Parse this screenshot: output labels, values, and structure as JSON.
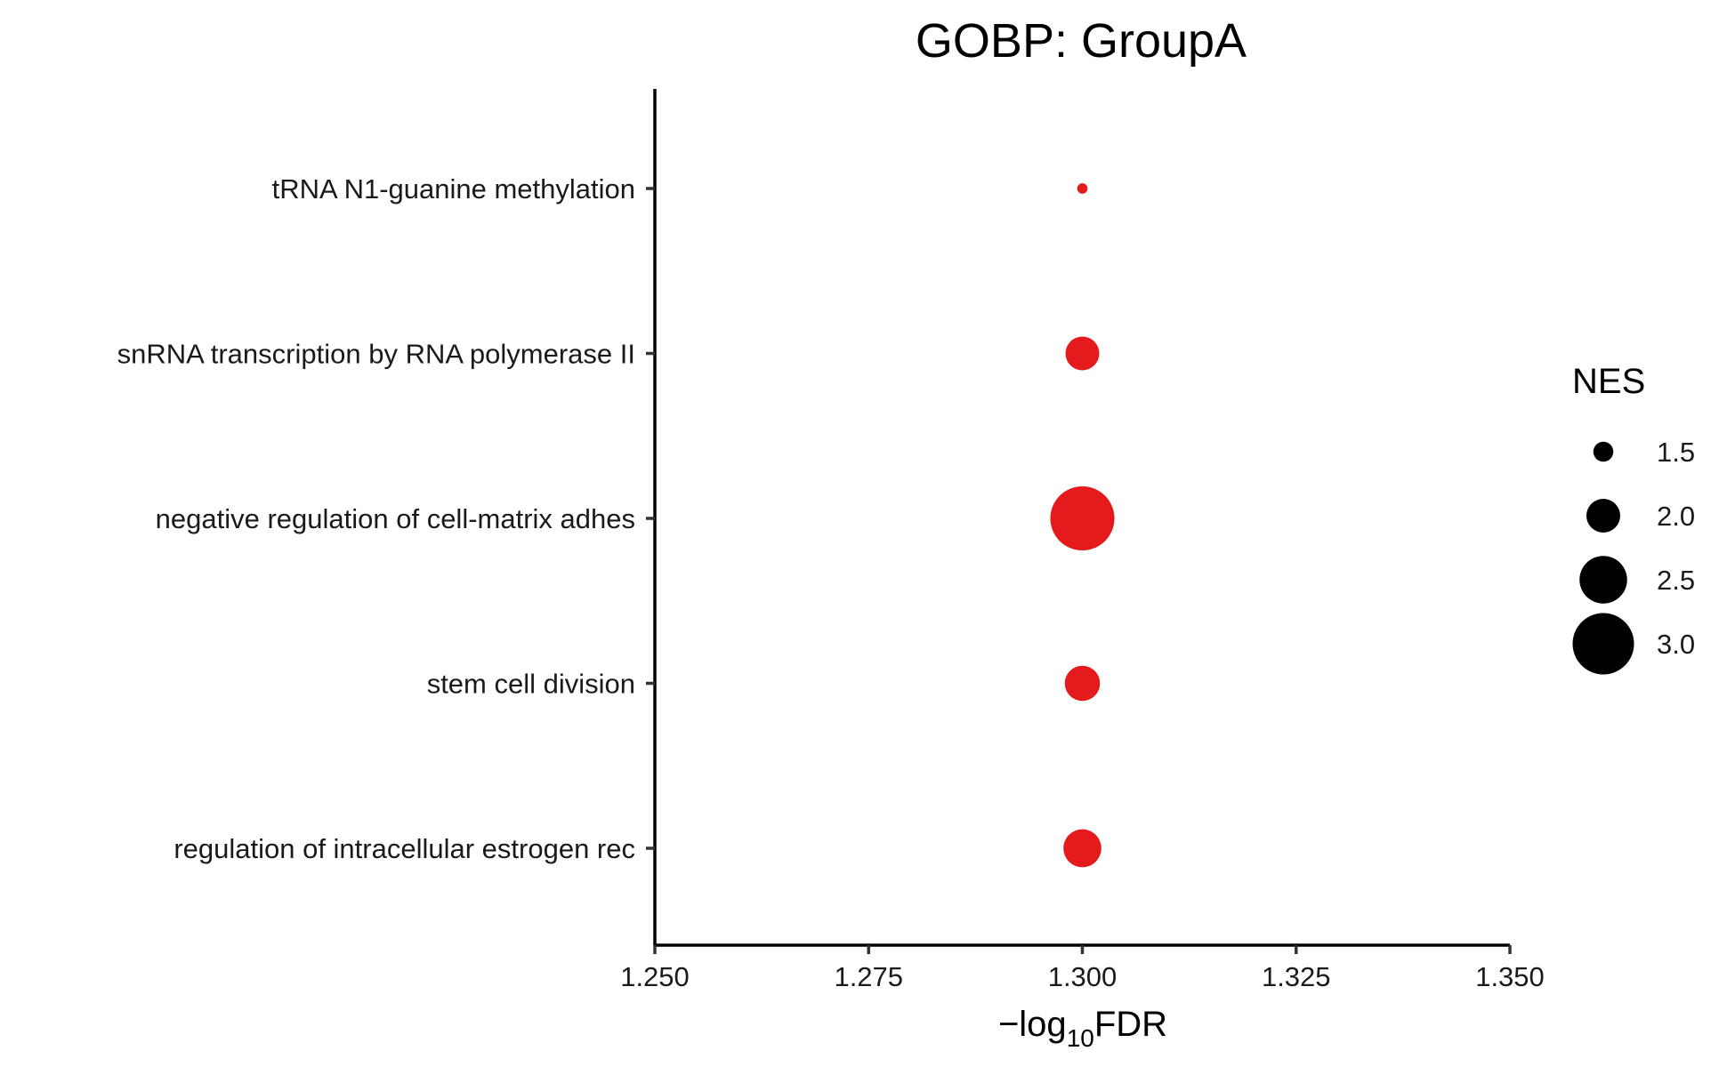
{
  "chart_data": {
    "type": "scatter",
    "title": "GOBP: GroupA",
    "xlabel_prefix": "−log",
    "xlabel_sub": "10",
    "xlabel_suffix": "FDR",
    "ylabel": "",
    "xlim": [
      1.25,
      1.35
    ],
    "xticks": [
      1.25,
      1.275,
      1.3,
      1.325,
      1.35
    ],
    "xtick_labels": [
      "1.250",
      "1.275",
      "1.300",
      "1.325",
      "1.350"
    ],
    "categories": [
      "tRNA N1-guanine methylation",
      "snRNA transcription by RNA polymerase II",
      "negative regulation of cell-matrix adhes",
      "stem cell division",
      "regulation of intracellular estrogen rec"
    ],
    "x": [
      1.3,
      1.3,
      1.3,
      1.3,
      1.3
    ],
    "nes": [
      1.15,
      2.0,
      3.1,
      2.05,
      2.15
    ],
    "point_color": "#E41A1C",
    "grid": false,
    "legend": {
      "title": "NES",
      "placement": "right",
      "color": "#000000",
      "values": [
        1.5,
        2.0,
        2.5,
        3.0
      ],
      "labels": [
        "1.5",
        "2.0",
        "2.5",
        "3.0"
      ]
    }
  }
}
